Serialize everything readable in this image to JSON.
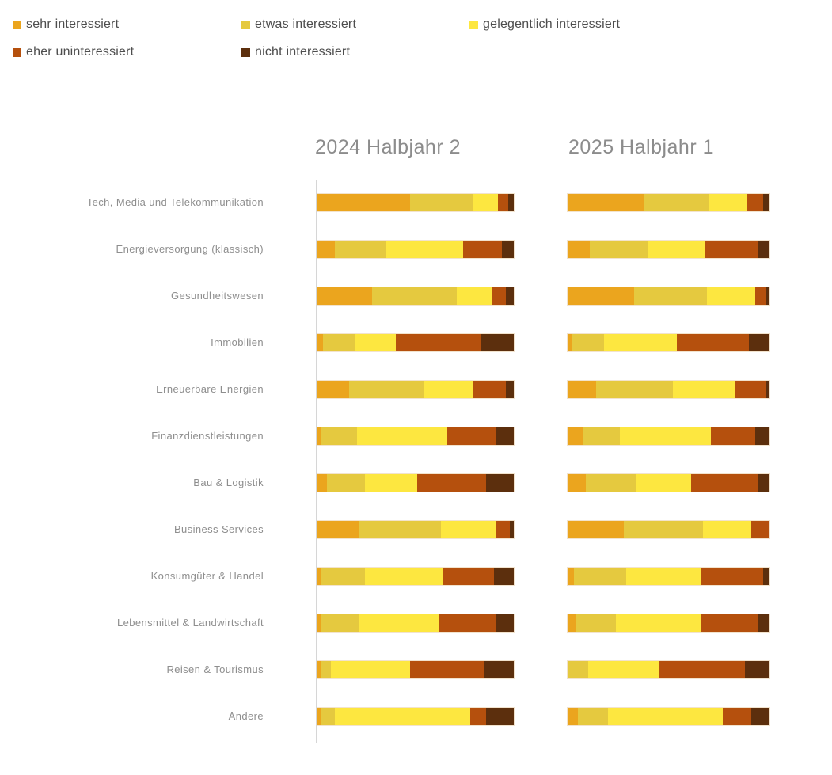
{
  "legend": {
    "items": [
      {
        "key": "sehr",
        "label": "sehr interessiert",
        "color": "#EBA51E"
      },
      {
        "key": "etwas",
        "label": "etwas interessiert",
        "color": "#E5C93F"
      },
      {
        "key": "gelegentlich",
        "label": "gelegentlich interessiert",
        "color": "#FDE740"
      },
      {
        "key": "eher",
        "label": "eher uninteressiert",
        "color": "#B5500D"
      },
      {
        "key": "nicht",
        "label": "nicht interessiert",
        "color": "#5C2F0D"
      }
    ]
  },
  "chart_data": {
    "type": "bar",
    "subtype": "horizontal-100pct-stacked, two period columns side by side",
    "unit": "percent (estimated from segment lengths, each bar sums to 100)",
    "xlim": [
      0,
      100
    ],
    "grid": false,
    "legend_position": "top-left",
    "period_headers": [
      "2024 Halbjahr 2",
      "2025 Halbjahr 1"
    ],
    "series_names": [
      "sehr interessiert",
      "etwas interessiert",
      "gelegentlich interessiert",
      "eher uninteressiert",
      "nicht interessiert"
    ],
    "series_keys": [
      "sehr",
      "etwas",
      "gelegentlich",
      "eher",
      "nicht"
    ],
    "series_colors": [
      "#EBA51E",
      "#E5C93F",
      "#FDE740",
      "#B5500D",
      "#5C2F0D"
    ],
    "categories": [
      "Tech, Media und Telekommunikation",
      "Energieversorgung (klassisch)",
      "Gesundheitswesen",
      "Immobilien",
      "Erneuerbare Energien",
      "Finanzdienstleistungen",
      "Bau & Logistik",
      "Business Services",
      "Konsumgüter & Handel",
      "Lebensmittel & Landwirtschaft",
      "Reisen & Tourismus",
      "Andere"
    ],
    "values_2024_h2": [
      [
        47,
        32,
        13,
        5,
        3
      ],
      [
        9,
        26,
        39,
        20,
        6
      ],
      [
        28,
        43,
        18,
        7,
        4
      ],
      [
        3,
        16,
        21,
        43,
        17
      ],
      [
        16,
        38,
        25,
        17,
        4
      ],
      [
        2,
        18,
        46,
        25,
        9
      ],
      [
        5,
        19,
        27,
        35,
        14
      ],
      [
        21,
        42,
        28,
        7,
        2
      ],
      [
        2,
        22,
        40,
        26,
        10
      ],
      [
        2,
        19,
        41,
        29,
        9
      ],
      [
        2,
        5,
        40,
        38,
        15
      ],
      [
        2,
        7,
        69,
        8,
        14
      ]
    ],
    "values_2025_h1": [
      [
        38,
        32,
        19,
        8,
        3
      ],
      [
        11,
        29,
        28,
        26,
        6
      ],
      [
        33,
        36,
        24,
        5,
        2
      ],
      [
        2,
        16,
        36,
        36,
        10
      ],
      [
        14,
        38,
        31,
        15,
        2
      ],
      [
        8,
        18,
        45,
        22,
        7
      ],
      [
        9,
        25,
        27,
        33,
        6
      ],
      [
        28,
        39,
        24,
        9,
        0
      ],
      [
        3,
        26,
        37,
        31,
        3
      ],
      [
        4,
        20,
        42,
        28,
        6
      ],
      [
        0,
        10,
        35,
        43,
        12
      ],
      [
        5,
        15,
        57,
        14,
        9
      ]
    ]
  }
}
